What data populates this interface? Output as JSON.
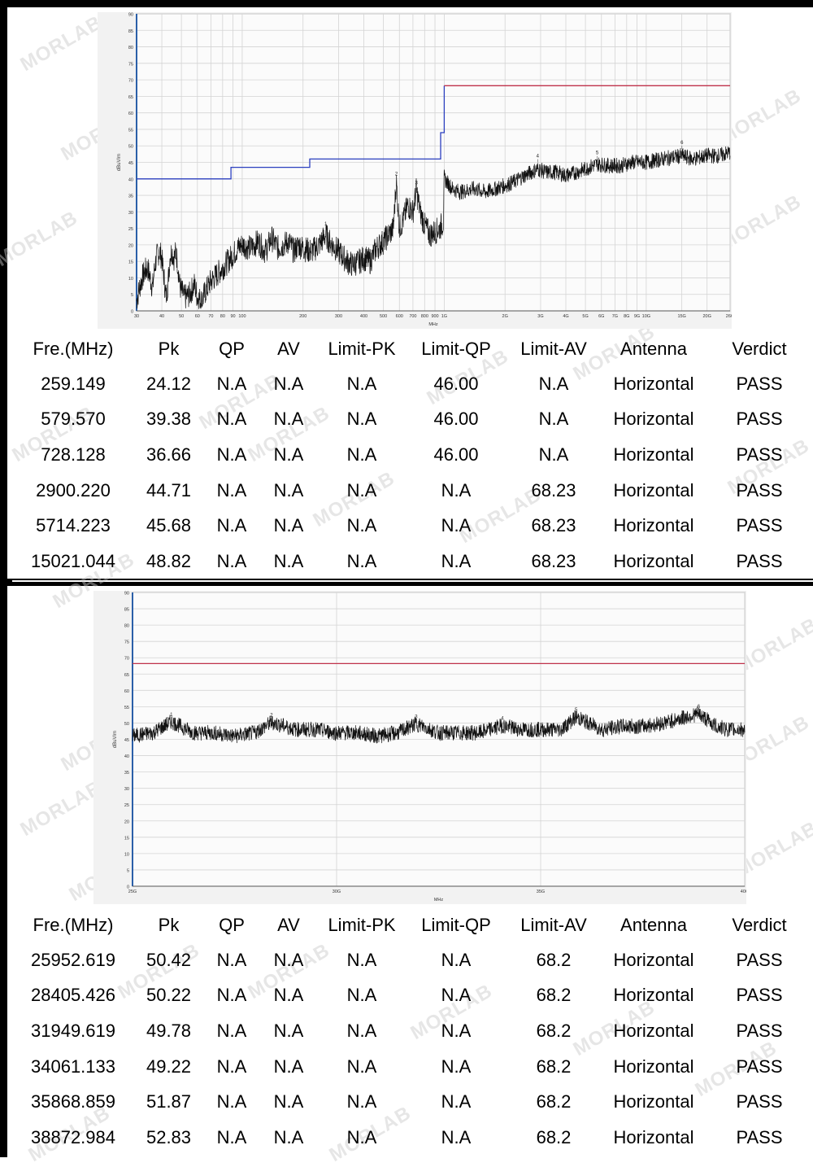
{
  "chart_data": [
    {
      "type": "line",
      "ylabel": "dBuV/m",
      "xlabel": "MHz",
      "x_scale": "log",
      "xlim": [
        30,
        26000
      ],
      "ylim": [
        0,
        90
      ],
      "y_ticks": [
        0,
        5,
        10,
        15,
        20,
        25,
        30,
        35,
        40,
        45,
        50,
        55,
        60,
        65,
        70,
        75,
        80,
        85,
        90
      ],
      "x_ticks": [
        {
          "v": 30,
          "l": "30"
        },
        {
          "v": 40,
          "l": "40"
        },
        {
          "v": 50,
          "l": "50"
        },
        {
          "v": 60,
          "l": "60"
        },
        {
          "v": 70,
          "l": "70"
        },
        {
          "v": 80,
          "l": "80"
        },
        {
          "v": 90,
          "l": "90"
        },
        {
          "v": 100,
          "l": "100"
        },
        {
          "v": 200,
          "l": "200"
        },
        {
          "v": 300,
          "l": "300"
        },
        {
          "v": 400,
          "l": "400"
        },
        {
          "v": 500,
          "l": "500"
        },
        {
          "v": 600,
          "l": "600"
        },
        {
          "v": 700,
          "l": "700"
        },
        {
          "v": 800,
          "l": "800"
        },
        {
          "v": 900,
          "l": "900"
        },
        {
          "v": 1000,
          "l": "1G"
        },
        {
          "v": 2000,
          "l": "2G"
        },
        {
          "v": 3000,
          "l": "3G"
        },
        {
          "v": 4000,
          "l": "4G"
        },
        {
          "v": 5000,
          "l": "5G"
        },
        {
          "v": 6000,
          "l": "6G"
        },
        {
          "v": 7000,
          "l": "7G"
        },
        {
          "v": 8000,
          "l": "8G"
        },
        {
          "v": 9000,
          "l": "9G"
        },
        {
          "v": 10000,
          "l": "10G"
        },
        {
          "v": 15000,
          "l": "15G"
        },
        {
          "v": 20000,
          "l": "20G"
        },
        {
          "v": 26000,
          "l": "26G"
        }
      ],
      "grid": true,
      "limit_lines": [
        {
          "color": "#2b3fbf",
          "points": [
            [
              30,
              40
            ],
            [
              88,
              40
            ],
            [
              88,
              43.5
            ],
            [
              216,
              43.5
            ],
            [
              216,
              46
            ],
            [
              960,
              46
            ],
            [
              960,
              54
            ],
            [
              1000,
              54
            ],
            [
              1000,
              68.23
            ]
          ]
        },
        {
          "color": "#c0334b",
          "points": [
            [
              1000,
              68.23
            ],
            [
              26000,
              68.23
            ]
          ]
        }
      ],
      "series": [
        {
          "values": [
            [
              30,
              3
            ],
            [
              31,
              7
            ],
            [
              32,
              10
            ],
            [
              33,
              12
            ],
            [
              34,
              13
            ],
            [
              35,
              10
            ],
            [
              36,
              7
            ],
            [
              37,
              14
            ],
            [
              38,
              17
            ],
            [
              39,
              18
            ],
            [
              40,
              16
            ],
            [
              41,
              10
            ],
            [
              42,
              4
            ],
            [
              43,
              9
            ],
            [
              44,
              17
            ],
            [
              45,
              18
            ],
            [
              46,
              16
            ],
            [
              47,
              18
            ],
            [
              48,
              14
            ],
            [
              49,
              8
            ],
            [
              50,
              6
            ],
            [
              52,
              4
            ],
            [
              55,
              5
            ],
            [
              58,
              8
            ],
            [
              60,
              4
            ],
            [
              63,
              3
            ],
            [
              66,
              6
            ],
            [
              70,
              9
            ],
            [
              75,
              11
            ],
            [
              80,
              13
            ],
            [
              85,
              15
            ],
            [
              90,
              17
            ],
            [
              95,
              19
            ],
            [
              100,
              20
            ],
            [
              110,
              19
            ],
            [
              120,
              21
            ],
            [
              130,
              18
            ],
            [
              140,
              22
            ],
            [
              150,
              19
            ],
            [
              160,
              20
            ],
            [
              170,
              21
            ],
            [
              180,
              18
            ],
            [
              190,
              20
            ],
            [
              200,
              19
            ],
            [
              220,
              18
            ],
            [
              240,
              20
            ],
            [
              259,
              23
            ],
            [
              270,
              21
            ],
            [
              290,
              19
            ],
            [
              310,
              17
            ],
            [
              330,
              15
            ],
            [
              350,
              14
            ],
            [
              380,
              15
            ],
            [
              400,
              16
            ],
            [
              430,
              15
            ],
            [
              460,
              19
            ],
            [
              500,
              21
            ],
            [
              530,
              23
            ],
            [
              560,
              25
            ],
            [
              579,
              39.38
            ],
            [
              600,
              25
            ],
            [
              630,
              28
            ],
            [
              660,
              32
            ],
            [
              700,
              30
            ],
            [
              728,
              36.66
            ],
            [
              760,
              30
            ],
            [
              800,
              26
            ],
            [
              850,
              23
            ],
            [
              900,
              24
            ],
            [
              950,
              25
            ],
            [
              990,
              27
            ],
            [
              1000,
              40
            ],
            [
              1100,
              37
            ],
            [
              1200,
              36
            ],
            [
              1400,
              37
            ],
            [
              1600,
              36
            ],
            [
              1800,
              37
            ],
            [
              2000,
              38
            ],
            [
              2200,
              39
            ],
            [
              2500,
              41
            ],
            [
              2900,
              43
            ],
            [
              3200,
              42
            ],
            [
              3600,
              42
            ],
            [
              4000,
              41
            ],
            [
              4500,
              42
            ],
            [
              5000,
              43
            ],
            [
              5714,
              44.5
            ],
            [
              6500,
              44
            ],
            [
              7500,
              44
            ],
            [
              8500,
              45
            ],
            [
              10000,
              45
            ],
            [
              12000,
              46
            ],
            [
              15021,
              47
            ],
            [
              17000,
              46
            ],
            [
              20000,
              47
            ],
            [
              23000,
              47
            ],
            [
              26000,
              48
            ]
          ]
        }
      ],
      "markers": [
        {
          "label": "1",
          "x": 259.149,
          "y": 24.12
        },
        {
          "label": "2",
          "x": 579.57,
          "y": 39.38
        },
        {
          "label": "3",
          "x": 728.128,
          "y": 36.66
        },
        {
          "label": "4",
          "x": 2900.22,
          "y": 44.71
        },
        {
          "label": "5",
          "x": 5714.223,
          "y": 45.68
        },
        {
          "label": "6",
          "x": 15021.044,
          "y": 48.82
        }
      ]
    },
    {
      "type": "line",
      "ylabel": "dBuV/m",
      "xlabel": "MHz",
      "x_scale": "linear",
      "xlim": [
        25000,
        40000
      ],
      "ylim": [
        0,
        90
      ],
      "y_ticks": [
        0,
        5,
        10,
        15,
        20,
        25,
        30,
        35,
        40,
        45,
        50,
        55,
        60,
        65,
        70,
        75,
        80,
        85,
        90
      ],
      "x_ticks": [
        {
          "v": 25000,
          "l": "25G"
        },
        {
          "v": 30000,
          "l": "30G"
        },
        {
          "v": 35000,
          "l": "35G"
        },
        {
          "v": 40000,
          "l": "40G"
        }
      ],
      "grid": true,
      "limit_lines": [
        {
          "color": "#c0334b",
          "points": [
            [
              25000,
              68.2
            ],
            [
              40000,
              68.2
            ]
          ]
        }
      ],
      "series": [
        {
          "values": [
            [
              25000,
              46
            ],
            [
              25500,
              47
            ],
            [
              25952,
              50.42
            ],
            [
              26500,
              47
            ],
            [
              27000,
              47
            ],
            [
              27500,
              46
            ],
            [
              28000,
              47
            ],
            [
              28405,
              50.22
            ],
            [
              29000,
              48
            ],
            [
              29500,
              48
            ],
            [
              30000,
              47
            ],
            [
              30500,
              47
            ],
            [
              31000,
              46
            ],
            [
              31500,
              47
            ],
            [
              31949,
              49.78
            ],
            [
              32500,
              47
            ],
            [
              33000,
              47
            ],
            [
              33500,
              47
            ],
            [
              34061,
              49.22
            ],
            [
              34500,
              48
            ],
            [
              35000,
              48
            ],
            [
              35500,
              48
            ],
            [
              35868,
              51.87
            ],
            [
              36500,
              48
            ],
            [
              37000,
              49
            ],
            [
              37500,
              49
            ],
            [
              38000,
              50
            ],
            [
              38872,
              52.83
            ],
            [
              39300,
              49
            ],
            [
              39600,
              48
            ],
            [
              40000,
              48
            ]
          ]
        }
      ],
      "markers": [
        {
          "label": "1",
          "x": 25952.619,
          "y": 50.42
        },
        {
          "label": "2",
          "x": 28405.426,
          "y": 50.22
        },
        {
          "label": "3",
          "x": 31949.619,
          "y": 49.78
        },
        {
          "label": "4",
          "x": 34061.133,
          "y": 49.22
        },
        {
          "label": "5",
          "x": 35868.859,
          "y": 51.87
        },
        {
          "label": "6",
          "x": 38872.984,
          "y": 52.83
        }
      ]
    }
  ],
  "table1": {
    "headers": [
      "Fre.(MHz)",
      "Pk",
      "QP",
      "AV",
      "Limit-PK",
      "Limit-QP",
      "Limit-AV",
      "Antenna",
      "Verdict"
    ],
    "rows": [
      [
        "259.149",
        "24.12",
        "N.A",
        "N.A",
        "N.A",
        "46.00",
        "N.A",
        "Horizontal",
        "PASS"
      ],
      [
        "579.570",
        "39.38",
        "N.A",
        "N.A",
        "N.A",
        "46.00",
        "N.A",
        "Horizontal",
        "PASS"
      ],
      [
        "728.128",
        "36.66",
        "N.A",
        "N.A",
        "N.A",
        "46.00",
        "N.A",
        "Horizontal",
        "PASS"
      ],
      [
        "2900.220",
        "44.71",
        "N.A",
        "N.A",
        "N.A",
        "N.A",
        "68.23",
        "Horizontal",
        "PASS"
      ],
      [
        "5714.223",
        "45.68",
        "N.A",
        "N.A",
        "N.A",
        "N.A",
        "68.23",
        "Horizontal",
        "PASS"
      ],
      [
        "15021.044",
        "48.82",
        "N.A",
        "N.A",
        "N.A",
        "N.A",
        "68.23",
        "Horizontal",
        "PASS"
      ]
    ]
  },
  "table2": {
    "headers": [
      "Fre.(MHz)",
      "Pk",
      "QP",
      "AV",
      "Limit-PK",
      "Limit-QP",
      "Limit-AV",
      "Antenna",
      "Verdict"
    ],
    "rows": [
      [
        "25952.619",
        "50.42",
        "N.A",
        "N.A",
        "N.A",
        "N.A",
        "68.2",
        "Horizontal",
        "PASS"
      ],
      [
        "28405.426",
        "50.22",
        "N.A",
        "N.A",
        "N.A",
        "N.A",
        "68.2",
        "Horizontal",
        "PASS"
      ],
      [
        "31949.619",
        "49.78",
        "N.A",
        "N.A",
        "N.A",
        "N.A",
        "68.2",
        "Horizontal",
        "PASS"
      ],
      [
        "34061.133",
        "49.22",
        "N.A",
        "N.A",
        "N.A",
        "N.A",
        "68.2",
        "Horizontal",
        "PASS"
      ],
      [
        "35868.859",
        "51.87",
        "N.A",
        "N.A",
        "N.A",
        "N.A",
        "68.2",
        "Horizontal",
        "PASS"
      ],
      [
        "38872.984",
        "52.83",
        "N.A",
        "N.A",
        "N.A",
        "N.A",
        "68.2",
        "Horizontal",
        "PASS"
      ]
    ]
  },
  "watermark": "MORLAB"
}
